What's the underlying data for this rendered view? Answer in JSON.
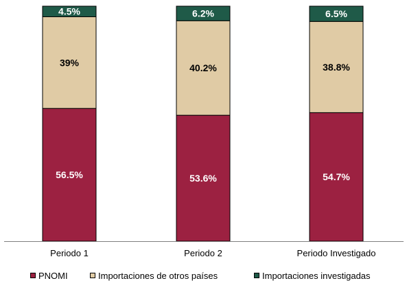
{
  "chart_data": {
    "type": "bar",
    "stacked": true,
    "normalized_percent": true,
    "categories": [
      "Periodo 1",
      "Periodo 2",
      "Periodo Investigado"
    ],
    "series": [
      {
        "name": "PNOMI",
        "values": [
          56.5,
          53.6,
          54.7
        ],
        "labels": [
          "56.5%",
          "53.6%",
          "54.7%"
        ],
        "color": "#9c2141",
        "label_color": "#ffffff"
      },
      {
        "name": "Importaciones de otros países",
        "values": [
          39,
          40.2,
          38.8
        ],
        "labels": [
          "39%",
          "40.2%",
          "38.8%"
        ],
        "color": "#e0cba5",
        "label_color": "#000000"
      },
      {
        "name": "Importaciones investigadas",
        "values": [
          4.5,
          6.2,
          6.5
        ],
        "labels": [
          "4.5%",
          "6.2%",
          "6.5%"
        ],
        "color": "#1f5a48",
        "label_color": "#ffffff"
      }
    ],
    "ylim": [
      0,
      100
    ],
    "grid": false,
    "legend_position": "bottom"
  }
}
